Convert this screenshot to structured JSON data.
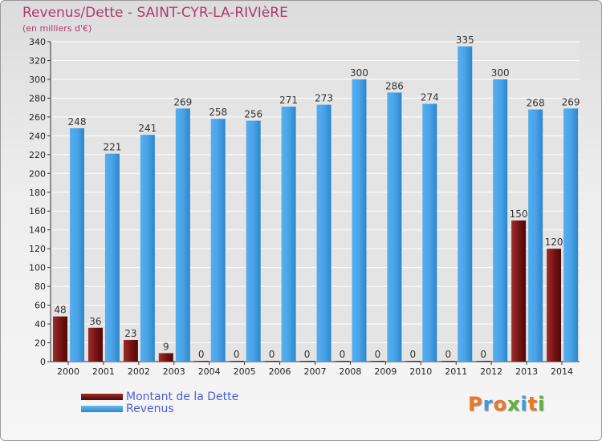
{
  "title": "Revenus/Dette - SAINT-CYR-LA-RIVIèRE",
  "subtitle": "(en milliers d'€)",
  "brand": "Proxiti",
  "colors": {
    "dette": "#7a1414",
    "revenus": "#3f9be0",
    "title": "#b03a6c",
    "legend_text": "#4a5fd6"
  },
  "chart_data": {
    "type": "bar",
    "categories": [
      "2000",
      "2001",
      "2002",
      "2003",
      "2004",
      "2005",
      "2006",
      "2007",
      "2008",
      "2009",
      "2010",
      "2011",
      "2012",
      "2013",
      "2014"
    ],
    "series": [
      {
        "name": "Montant de la Dette",
        "values": [
          48,
          36,
          23,
          9,
          0,
          0,
          0,
          0,
          0,
          0,
          0,
          0,
          0,
          150,
          120
        ]
      },
      {
        "name": "Revenus",
        "values": [
          248,
          221,
          241,
          269,
          258,
          256,
          271,
          273,
          300,
          286,
          274,
          335,
          300,
          268,
          269
        ]
      }
    ],
    "ylim": [
      0,
      340
    ],
    "ytick_step": 20,
    "grid": true,
    "legend": "bottom-left"
  }
}
